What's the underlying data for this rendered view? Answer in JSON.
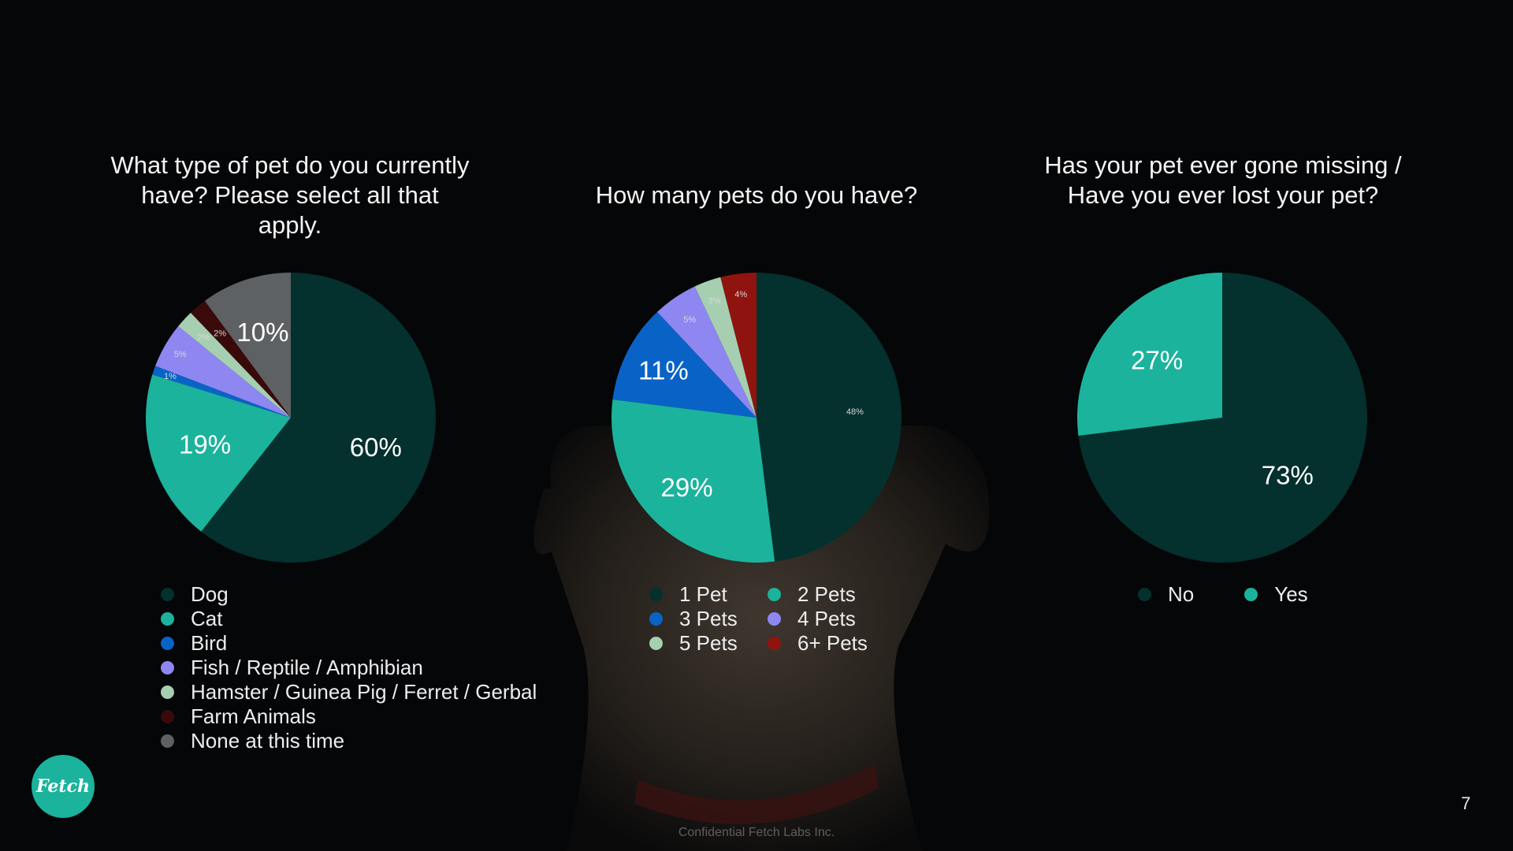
{
  "colors": {
    "background": "#050608",
    "dog_silhouette": "#3a3128"
  },
  "chart_data": [
    {
      "type": "pie",
      "title": "What type of pet do you currently have? Please select all that apply.",
      "slices": [
        {
          "name": "Dog",
          "value": 60,
          "label": "60%",
          "color": "#04302d"
        },
        {
          "name": "Cat",
          "value": 19,
          "label": "19%",
          "color": "#1bb39c"
        },
        {
          "name": "Bird",
          "value": 1,
          "label": "1%",
          "color": "#0963c7"
        },
        {
          "name": "Fish / Reptile / Amphibian",
          "value": 5,
          "label": "5%",
          "color": "#8e87f2"
        },
        {
          "name": "Hamster / Guinea Pig / Ferret / Gerbal",
          "value": 2,
          "label": "2%",
          "color": "#a6cfb1"
        },
        {
          "name": "Farm Animals",
          "value": 2,
          "label": "2%",
          "color": "#3a0a0a"
        },
        {
          "name": "None at this time",
          "value": 10,
          "label": "10%",
          "color": "#5e6164"
        }
      ],
      "legend": "bottom"
    },
    {
      "type": "pie",
      "title": "How many pets do you have?",
      "slices": [
        {
          "name": "1 Pet",
          "value": 48,
          "label": "48%",
          "color": "#04302d"
        },
        {
          "name": "2 Pets",
          "value": 29,
          "label": "29%",
          "color": "#1bb39c"
        },
        {
          "name": "3 Pets",
          "value": 11,
          "label": "11%",
          "color": "#0963c7"
        },
        {
          "name": "4 Pets",
          "value": 5,
          "label": "5%",
          "color": "#8e87f2"
        },
        {
          "name": "5 Pets",
          "value": 3,
          "label": "3%",
          "color": "#a6cfb1"
        },
        {
          "name": "6+ Pets",
          "value": 4,
          "label": "4%",
          "color": "#8f1410"
        }
      ],
      "legend": "bottom"
    },
    {
      "type": "pie",
      "title": "Has your pet ever gone missing / Have you ever lost your pet?",
      "slices": [
        {
          "name": "No",
          "value": 73,
          "label": "73%",
          "color": "#04302d"
        },
        {
          "name": "Yes",
          "value": 27,
          "label": "27%",
          "color": "#1bb39c"
        }
      ],
      "legend": "bottom"
    }
  ],
  "logo": {
    "text": "Fetch"
  },
  "page_number": "7",
  "footer": "Confidential Fetch Labs Inc."
}
